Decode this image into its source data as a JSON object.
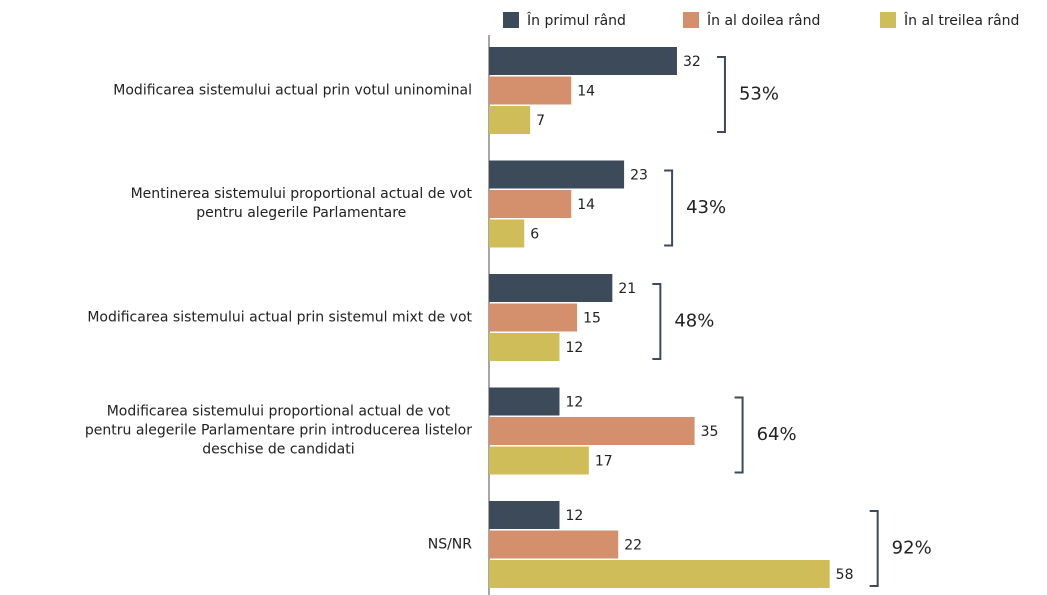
{
  "chart_data": {
    "type": "bar",
    "orientation": "horizontal",
    "categories": [
      "Modificarea sistemului actual prin votul uninominal",
      "Mentinerea sistemului proportional actual de vot\npentru alegerile Parlamentare",
      "Modificarea sistemului actual prin sistemul mixt de vot",
      "Modificarea sistemului proportional actual de vot\npentru alegerile Parlamentare prin introducerea listelor\ndeschise de candidati",
      "NS/NR"
    ],
    "series": [
      {
        "name": "În primul rând",
        "color": "#3d4a5a",
        "values": [
          32,
          23,
          21,
          12,
          12
        ]
      },
      {
        "name": "În al doilea rând",
        "color": "#d4906c",
        "values": [
          14,
          14,
          15,
          35,
          22
        ]
      },
      {
        "name": "În al treilea rând",
        "color": "#cfbd5a",
        "values": [
          7,
          6,
          12,
          17,
          58
        ]
      }
    ],
    "annotations": [
      "53%",
      "43%",
      "48%",
      "64%",
      "92%"
    ],
    "xlim": [
      0,
      95
    ],
    "legend": "top-right"
  }
}
